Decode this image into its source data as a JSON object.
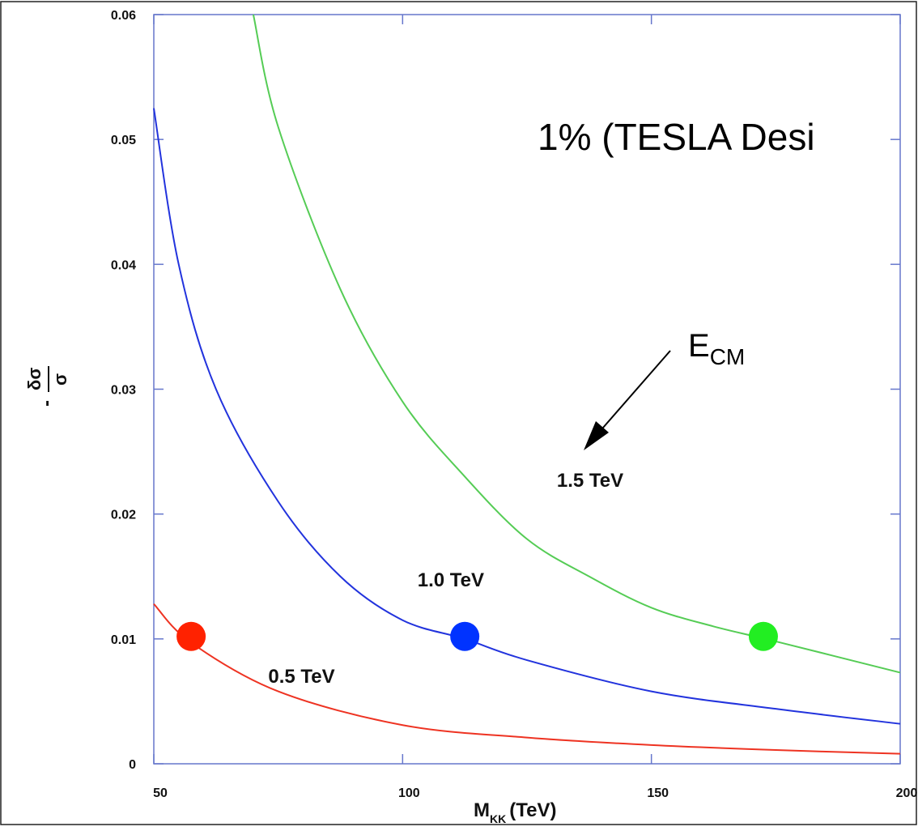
{
  "chart_data": {
    "type": "line",
    "xlabel": "M",
    "xlabel_sub": "KK",
    "xlabel_unit": "(TeV)",
    "ylabel_num": "δσ",
    "ylabel_den": "σ",
    "xlim": [
      50,
      200
    ],
    "ylim": [
      0,
      0.06
    ],
    "x_ticks": [
      "50",
      "100",
      "150",
      "200"
    ],
    "y_ticks": [
      "0",
      "0.01",
      "0.02",
      "0.03",
      "0.04",
      "0.05",
      "0.06"
    ],
    "grid": false,
    "series": [
      {
        "name": "0.5 TeV",
        "color": "#ee3322",
        "x": [
          50,
          57.5,
          75,
          100,
          125,
          150,
          175,
          200
        ],
        "y": [
          0.0128,
          0.0097,
          0.0058,
          0.0031,
          0.0021,
          0.0015,
          0.0011,
          0.0008
        ]
      },
      {
        "name": "1.0 TeV",
        "color": "#2233dd",
        "x": [
          50,
          55,
          62.5,
          75,
          87.5,
          100,
          112.5,
          125,
          150,
          175,
          200
        ],
        "y": [
          0.0525,
          0.04,
          0.03,
          0.021,
          0.015,
          0.0115,
          0.01,
          0.0083,
          0.0058,
          0.0044,
          0.0032
        ]
      },
      {
        "name": "1.5 TeV",
        "color": "#55cc55",
        "x": [
          70,
          75,
          87.5,
          100,
          112.5,
          125,
          137.5,
          150,
          162.5,
          175,
          200
        ],
        "y": [
          0.06,
          0.051,
          0.038,
          0.029,
          0.023,
          0.018,
          0.015,
          0.0125,
          0.011,
          0.0098,
          0.0073
        ]
      }
    ],
    "markers": [
      {
        "x": 57.5,
        "y": 0.0102,
        "color": "#ff2200"
      },
      {
        "x": 112.5,
        "y": 0.0102,
        "color": "#0033ff"
      },
      {
        "x": 172.5,
        "y": 0.0102,
        "color": "#22ee22"
      }
    ],
    "annotations": {
      "headline": "1% (TESLA Desi",
      "ecm_main": "E",
      "ecm_sub": "CM"
    },
    "curve_labels": [
      {
        "text": "0.5  TeV",
        "x": 73,
        "y": 0.0065
      },
      {
        "text": "1.0 TeV",
        "x": 103,
        "y": 0.0142
      },
      {
        "text": "1.5 TeV",
        "x": 131,
        "y": 0.0222
      }
    ]
  }
}
